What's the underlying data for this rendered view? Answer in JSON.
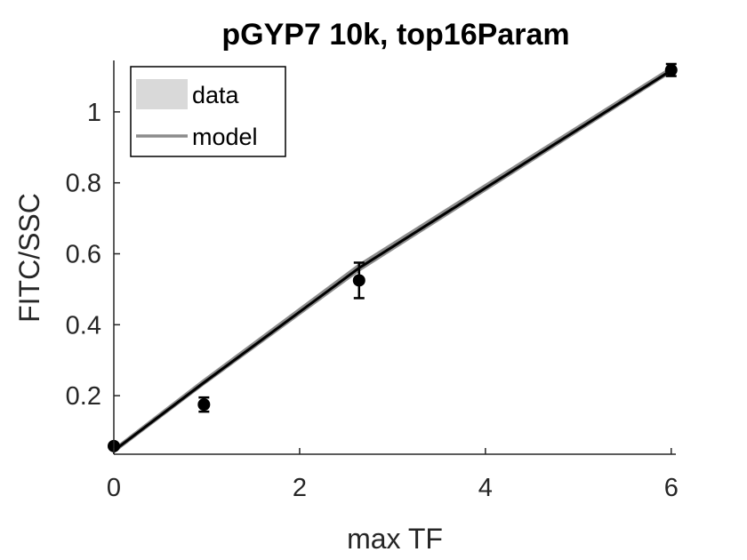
{
  "chart_data": {
    "type": "line",
    "title": "pGYP7 10k, top16Param",
    "xlabel": "max TF",
    "ylabel": "FITC/SSC",
    "xlim": [
      0,
      6.05
    ],
    "ylim": [
      0.035,
      1.145
    ],
    "x_ticks": [
      0,
      2,
      4,
      6
    ],
    "x_tick_labels": [
      "0",
      "2",
      "4",
      "6"
    ],
    "y_ticks": [
      0.2,
      0.4,
      0.6,
      0.8,
      1.0
    ],
    "y_tick_labels": [
      "0.2",
      "0.4",
      "0.6",
      "0.8",
      "1"
    ],
    "legend_position": "top-left",
    "legend": [
      {
        "label": "data",
        "swatch": "band",
        "color": "#d9d9d9"
      },
      {
        "label": "model",
        "swatch": "line",
        "color": "#8c8c8c"
      }
    ],
    "data_points": {
      "x": [
        0,
        0.97,
        2.64,
        6.0
      ],
      "y": [
        0.058,
        0.175,
        0.525,
        1.118
      ],
      "err": [
        0.006,
        0.02,
        0.05,
        0.017
      ],
      "color": "#000000"
    },
    "model_band": {
      "x": [
        0,
        0.97,
        2.64,
        6.0
      ],
      "upper": [
        0.05,
        0.245,
        0.57,
        1.125
      ],
      "lower": [
        0.04,
        0.232,
        0.552,
        1.112
      ],
      "color": "#8c8c8c"
    },
    "model_line": {
      "x": [
        0,
        0.97,
        2.64,
        6.0
      ],
      "y": [
        0.045,
        0.237,
        0.56,
        1.117
      ],
      "color": "#000000"
    }
  }
}
